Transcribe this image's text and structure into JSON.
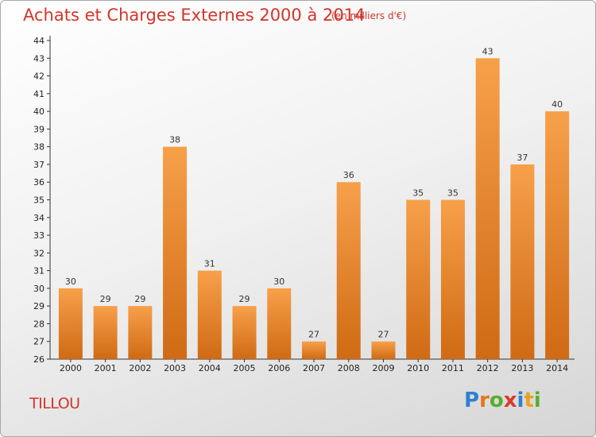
{
  "header": {
    "title": "Achats et Charges Externes 2000 à 2014",
    "unit": "(en milliers d'€)"
  },
  "footer": {
    "commune": "TILLOU",
    "logo_letters": [
      "P",
      "r",
      "o",
      "x",
      "i",
      "t",
      "i"
    ],
    "logo_colors": [
      "#2f7fd0",
      "#e8731c",
      "#58ad2f",
      "#d93a2b",
      "#2f7fd0",
      "#e8a21c",
      "#58ad2f"
    ]
  },
  "chart_data": {
    "type": "bar",
    "title": "Achats et Charges Externes 2000 à 2014",
    "subtitle": "(en milliers d'€)",
    "categories": [
      "2000",
      "2001",
      "2002",
      "2003",
      "2004",
      "2005",
      "2006",
      "2007",
      "2008",
      "2009",
      "2010",
      "2011",
      "2012",
      "2013",
      "2014"
    ],
    "values": [
      30,
      29,
      29,
      38,
      31,
      29,
      30,
      27,
      36,
      27,
      35,
      35,
      43,
      37,
      40
    ],
    "value_labels": [
      "30",
      "29",
      "29",
      "38",
      "31",
      "29",
      "30",
      "27",
      "36",
      "27",
      "35",
      "35",
      "43",
      "37",
      "40"
    ],
    "ylim": [
      26,
      44
    ],
    "yticks": [
      "26",
      "27",
      "28",
      "29",
      "30",
      "31",
      "32",
      "33",
      "34",
      "35",
      "36",
      "37",
      "38",
      "39",
      "40",
      "41",
      "42",
      "43",
      "44"
    ],
    "grid": false,
    "bar_color_top": "#f7a04a",
    "bar_color_bottom": "#d06a14"
  }
}
